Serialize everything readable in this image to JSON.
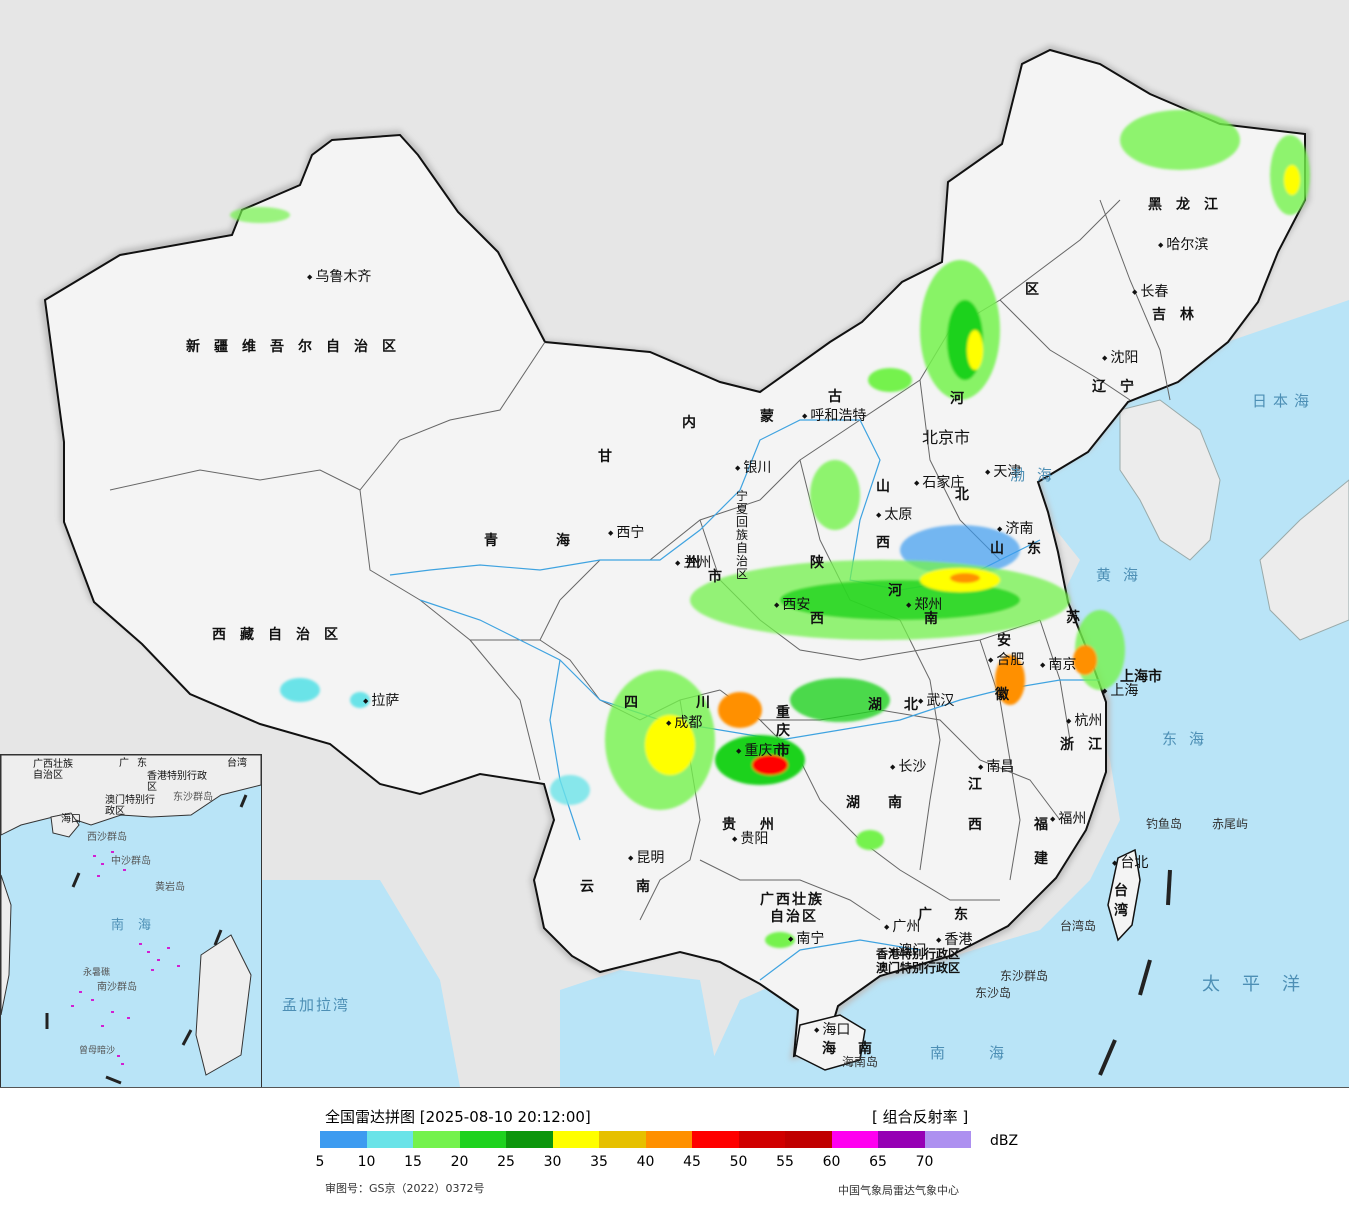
{
  "legend": {
    "title": "全国雷达拼图 [2025-08-10 20:12:00]",
    "product": "[ 组合反射率 ]",
    "unit": "dBZ",
    "review_number": "审图号：GS京（2022）0372号",
    "organization": "中国气象局雷达气象中心",
    "ticks": [
      "5",
      "10",
      "15",
      "20",
      "25",
      "30",
      "35",
      "40",
      "45",
      "50",
      "55",
      "60",
      "65",
      "70"
    ],
    "colors": [
      "#3d9bf0",
      "#6ae3e8",
      "#74f24d",
      "#1ed21e",
      "#0c960c",
      "#ffff00",
      "#e6c000",
      "#ff9000",
      "#ff0000",
      "#d00000",
      "#c00000",
      "#ff00f0",
      "#9600b4",
      "#ad90f0"
    ]
  },
  "regions": {
    "xinjiang": "新疆维吾尔自治区",
    "xizang": "西藏自治区",
    "qinghai_a": "青",
    "qinghai_b": "海",
    "gansu": "甘",
    "neimenggu_a": "内",
    "neimenggu_b": "蒙",
    "neimenggu_c": "古",
    "heilongjiang": "黑龙江",
    "jilin": "吉林",
    "liaoning": "辽宁",
    "qu": "区",
    "hebei_a": "河",
    "hebei_b": "北",
    "shanxi_a": "山",
    "shanxi_b": "西",
    "shaanxi_a": "陕",
    "shaanxi_b": "西",
    "ningxia": "宁夏回族自治区",
    "henan_a": "河",
    "henan_b": "南",
    "shandong_a": "山",
    "shandong_b": "东",
    "jiangsu": "苏",
    "anhui_a": "安",
    "anhui_b": "徽",
    "hubei_a": "湖",
    "hubei_b": "北",
    "sichuan_a": "四",
    "sichuan_b": "川",
    "chongqing_a": "重",
    "chongqing_b": "庆",
    "chongqing_c": "市",
    "hunan_a": "湖",
    "hunan_b": "南",
    "jiangxi_a": "江",
    "jiangxi_b": "西",
    "zhejiang_a": "浙",
    "zhejiang_b": "江",
    "fujian_a": "福",
    "fujian_b": "建",
    "guizhou_a": "贵",
    "guizhou_b": "州",
    "yunnan_a": "云",
    "yunnan_b": "南",
    "guangxi_a": "广西壮族",
    "guangxi_b": "自治区",
    "guangdong_a": "广",
    "guangdong_b": "东",
    "hainan_a": "海",
    "hainan_b": "南",
    "taiwan_a": "台",
    "taiwan_b": "湾",
    "shanghai": "上海市",
    "tianjin": "天津",
    "beijing": "北京",
    "hk_sar": "香港特别行政区",
    "macau_sar": "澳门特别行政区",
    "gansu_shi": "州",
    "gansu_shi2": "市"
  },
  "cities": {
    "urumqi": "乌鲁木齐",
    "lhasa": "拉萨",
    "xining": "西宁",
    "lanzhou": "兰州",
    "yinchuan": "银川",
    "hohhot": "呼和浩特",
    "harbin": "哈尔滨",
    "changchun": "长春",
    "shenyang": "沈阳",
    "beijing": "北京市",
    "tianjin": "天津",
    "shijiazhuang": "石家庄",
    "taiyuan": "太原",
    "jinan": "济南",
    "xian": "西安",
    "zhengzhou": "郑州",
    "hefei": "合肥",
    "nanjing": "南京",
    "shanghai": "上海",
    "hangzhou": "杭州",
    "wuhan": "武汉",
    "chengdu": "成都",
    "chongqing": "重庆市",
    "changsha": "长沙",
    "nanchang": "南昌",
    "fuzhou": "福州",
    "taipei": "台北",
    "guiyang": "贵阳",
    "kunming": "昆明",
    "nanning": "南宁",
    "guangzhou": "广州",
    "hongkong": "香港",
    "macau": "澳门",
    "haikou": "海口"
  },
  "seas": {
    "bohai": "渤海",
    "huanghai": "黄海",
    "donghai": "东海",
    "riben": "日本海",
    "taipingyang": "太平洋",
    "nanhai": "南海",
    "mengjiala": "孟加拉湾"
  },
  "islands": {
    "diaoyu": "钓鱼岛",
    "chiwei": "赤尾屿",
    "taiwan_island": "台湾岛",
    "hainan_island": "海南岛",
    "dongsha": "东沙群岛",
    "dongsha2": "东沙岛"
  },
  "inset": {
    "guangxi": "广西壮族自治区",
    "guangdong": "广东",
    "taiwan": "台湾",
    "hk": "香港特别行政区",
    "macau": "澳门特别行政区",
    "dongsha": "东沙群岛",
    "haikou": "海口",
    "xisha": "西沙群岛",
    "zhongsha": "中沙群岛",
    "huangyan": "黄岩岛",
    "nanhai": "南海",
    "nansha": "南沙群岛",
    "yongshu": "永暑礁",
    "zengmu": "曾母暗沙"
  }
}
